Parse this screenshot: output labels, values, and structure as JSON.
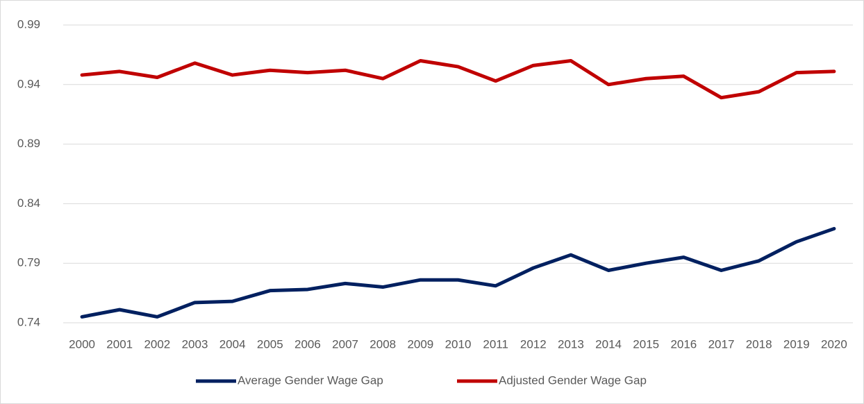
{
  "chart_data": {
    "type": "line",
    "categories": [
      "2000",
      "2001",
      "2002",
      "2003",
      "2004",
      "2005",
      "2006",
      "2007",
      "2008",
      "2009",
      "2010",
      "2011",
      "2012",
      "2013",
      "2014",
      "2015",
      "2016",
      "2017",
      "2018",
      "2019",
      "2020"
    ],
    "series": [
      {
        "name": "Average Gender Wage Gap",
        "color": "#002060",
        "values": [
          0.745,
          0.751,
          0.745,
          0.757,
          0.758,
          0.767,
          0.768,
          0.773,
          0.77,
          0.776,
          0.776,
          0.771,
          0.786,
          0.797,
          0.784,
          0.79,
          0.795,
          0.784,
          0.792,
          0.808,
          0.819
        ]
      },
      {
        "name": "Adjusted Gender Wage Gap",
        "color": "#c00000",
        "values": [
          0.948,
          0.951,
          0.946,
          0.958,
          0.948,
          0.952,
          0.95,
          0.952,
          0.945,
          0.96,
          0.955,
          0.943,
          0.956,
          0.96,
          0.94,
          0.945,
          0.947,
          0.929,
          0.934,
          0.95,
          0.951
        ]
      }
    ],
    "ylim": [
      0.74,
      0.99
    ],
    "yticks": [
      0.74,
      0.79,
      0.84,
      0.89,
      0.94,
      0.99
    ],
    "grid": true,
    "legend": "bottom"
  }
}
